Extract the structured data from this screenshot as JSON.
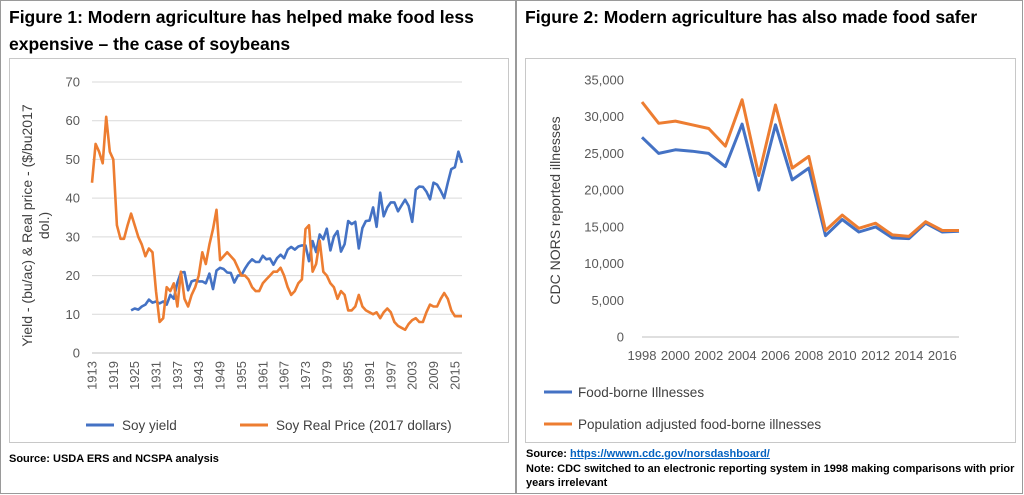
{
  "figure1": {
    "title": "Figure 1: Modern agriculture has helped make food less expensive – the case of soybeans",
    "source": "Source: USDA ERS and NCSPA analysis"
  },
  "figure2": {
    "title": "Figure 2: Modern agriculture has also made food safer",
    "source_label": "Source: ",
    "source_link": "https://wwwn.cdc.gov/norsdashboard/",
    "note": "Note: CDC switched to an electronic reporting system in 1998 making comparisons with prior years irrelevant"
  },
  "chart_data": [
    {
      "type": "line",
      "xlabel": "",
      "ylabel": "Yield - (bu/ac) & Real price - ($/bu2017 dol.)",
      "x_tick_labels": [
        "1913",
        "1919",
        "1925",
        "1931",
        "1937",
        "1943",
        "1949",
        "1955",
        "1961",
        "1967",
        "1973",
        "1979",
        "1985",
        "1991",
        "1997",
        "2003",
        "2009",
        "2015"
      ],
      "xlim": [
        1913,
        2017
      ],
      "ylim": [
        0,
        70
      ],
      "y_ticks": [
        0,
        10,
        20,
        30,
        40,
        50,
        60,
        70
      ],
      "legend_position": "bottom",
      "grid": "horizontal",
      "series": [
        {
          "name": "Soy yield",
          "color": "#4472c4",
          "points": [
            [
              1924,
              11
            ],
            [
              1925,
              11.5
            ],
            [
              1926,
              11.2
            ],
            [
              1927,
              12
            ],
            [
              1928,
              12.5
            ],
            [
              1929,
              13.8
            ],
            [
              1930,
              13
            ],
            [
              1931,
              13.3
            ],
            [
              1932,
              12.8
            ],
            [
              1933,
              13.3
            ],
            [
              1934,
              12.5
            ],
            [
              1935,
              15
            ],
            [
              1936,
              14
            ],
            [
              1937,
              18.2
            ],
            [
              1938,
              20.8
            ],
            [
              1939,
              20.9
            ],
            [
              1940,
              16.2
            ],
            [
              1941,
              18.5
            ],
            [
              1942,
              18.8
            ],
            [
              1943,
              18.5
            ],
            [
              1944,
              18.5
            ],
            [
              1945,
              18
            ],
            [
              1946,
              20.5
            ],
            [
              1947,
              16.5
            ],
            [
              1948,
              21.3
            ],
            [
              1949,
              22
            ],
            [
              1950,
              21.7
            ],
            [
              1951,
              20.8
            ],
            [
              1952,
              20.7
            ],
            [
              1953,
              18.2
            ],
            [
              1954,
              20
            ],
            [
              1955,
              20.1
            ],
            [
              1956,
              21.8
            ],
            [
              1957,
              23.2
            ],
            [
              1958,
              24.2
            ],
            [
              1959,
              23.5
            ],
            [
              1960,
              23.5
            ],
            [
              1961,
              25.1
            ],
            [
              1962,
              24.2
            ],
            [
              1963,
              24.4
            ],
            [
              1964,
              22.8
            ],
            [
              1965,
              24.5
            ],
            [
              1966,
              25.4
            ],
            [
              1967,
              24.5
            ],
            [
              1968,
              26.7
            ],
            [
              1969,
              27.4
            ],
            [
              1970,
              26.7
            ],
            [
              1971,
              27.5
            ],
            [
              1972,
              27.8
            ],
            [
              1973,
              27.8
            ],
            [
              1974,
              23.7
            ],
            [
              1975,
              28.9
            ],
            [
              1976,
              26.1
            ],
            [
              1977,
              30.6
            ],
            [
              1978,
              29.4
            ],
            [
              1979,
              32.1
            ],
            [
              1980,
              26.5
            ],
            [
              1981,
              30.1
            ],
            [
              1982,
              31.5
            ],
            [
              1983,
              26.2
            ],
            [
              1984,
              28.1
            ],
            [
              1985,
              34.1
            ],
            [
              1986,
              33.3
            ],
            [
              1987,
              33.9
            ],
            [
              1988,
              27
            ],
            [
              1989,
              32.3
            ],
            [
              1990,
              34.1
            ],
            [
              1991,
              34.2
            ],
            [
              1992,
              37.6
            ],
            [
              1993,
              32.6
            ],
            [
              1994,
              41.4
            ],
            [
              1995,
              35.3
            ],
            [
              1996,
              37.6
            ],
            [
              1997,
              38.9
            ],
            [
              1998,
              38.9
            ],
            [
              1999,
              36.6
            ],
            [
              2000,
              38.1
            ],
            [
              2001,
              39.6
            ],
            [
              2002,
              38
            ],
            [
              2003,
              33.9
            ],
            [
              2004,
              42.2
            ],
            [
              2005,
              43
            ],
            [
              2006,
              42.9
            ],
            [
              2007,
              41.7
            ],
            [
              2008,
              39.7
            ],
            [
              2009,
              44
            ],
            [
              2010,
              43.5
            ],
            [
              2011,
              41.9
            ],
            [
              2012,
              40
            ],
            [
              2013,
              44
            ],
            [
              2014,
              47.5
            ],
            [
              2015,
              48
            ],
            [
              2016,
              52
            ],
            [
              2017,
              49.1
            ]
          ]
        },
        {
          "name": "Soy Real Price (2017 dollars)",
          "color": "#ed7d31",
          "points": [
            [
              1913,
              44
            ],
            [
              1914,
              54
            ],
            [
              1915,
              52
            ],
            [
              1916,
              49
            ],
            [
              1917,
              61
            ],
            [
              1918,
              52
            ],
            [
              1919,
              50
            ],
            [
              1920,
              33
            ],
            [
              1921,
              29.5
            ],
            [
              1922,
              29.5
            ],
            [
              1923,
              33
            ],
            [
              1924,
              36
            ],
            [
              1925,
              33
            ],
            [
              1926,
              30
            ],
            [
              1927,
              28
            ],
            [
              1928,
              25
            ],
            [
              1929,
              27
            ],
            [
              1930,
              26
            ],
            [
              1931,
              16
            ],
            [
              1932,
              8
            ],
            [
              1933,
              9
            ],
            [
              1934,
              17
            ],
            [
              1935,
              16
            ],
            [
              1936,
              18
            ],
            [
              1937,
              12
            ],
            [
              1938,
              21
            ],
            [
              1939,
              14
            ],
            [
              1940,
              12
            ],
            [
              1941,
              15
            ],
            [
              1942,
              17
            ],
            [
              1943,
              20
            ],
            [
              1944,
              26
            ],
            [
              1945,
              23
            ],
            [
              1946,
              28
            ],
            [
              1947,
              32
            ],
            [
              1948,
              37
            ],
            [
              1949,
              24
            ],
            [
              1950,
              25
            ],
            [
              1951,
              26
            ],
            [
              1952,
              25
            ],
            [
              1953,
              24
            ],
            [
              1954,
              22
            ],
            [
              1955,
              20
            ],
            [
              1956,
              20
            ],
            [
              1957,
              19
            ],
            [
              1958,
              17
            ],
            [
              1959,
              16
            ],
            [
              1960,
              16
            ],
            [
              1961,
              18
            ],
            [
              1962,
              19
            ],
            [
              1963,
              20
            ],
            [
              1964,
              21
            ],
            [
              1965,
              21
            ],
            [
              1966,
              22
            ],
            [
              1967,
              20
            ],
            [
              1968,
              17
            ],
            [
              1969,
              15
            ],
            [
              1970,
              16
            ],
            [
              1971,
              18
            ],
            [
              1972,
              19
            ],
            [
              1973,
              32
            ],
            [
              1974,
              33
            ],
            [
              1975,
              21
            ],
            [
              1976,
              23
            ],
            [
              1977,
              29
            ],
            [
              1978,
              21
            ],
            [
              1979,
              20
            ],
            [
              1980,
              18
            ],
            [
              1981,
              17
            ],
            [
              1982,
              14
            ],
            [
              1983,
              16
            ],
            [
              1984,
              15
            ],
            [
              1985,
              11
            ],
            [
              1986,
              11
            ],
            [
              1987,
              12
            ],
            [
              1988,
              15
            ],
            [
              1989,
              12
            ],
            [
              1990,
              11
            ],
            [
              1991,
              10.5
            ],
            [
              1992,
              10
            ],
            [
              1993,
              10.5
            ],
            [
              1994,
              9
            ],
            [
              1995,
              10.5
            ],
            [
              1996,
              11.5
            ],
            [
              1997,
              10.5
            ],
            [
              1998,
              8
            ],
            [
              1999,
              7
            ],
            [
              2000,
              6.5
            ],
            [
              2001,
              6
            ],
            [
              2002,
              7.5
            ],
            [
              2003,
              8.5
            ],
            [
              2004,
              9
            ],
            [
              2005,
              8
            ],
            [
              2006,
              8
            ],
            [
              2007,
              10.5
            ],
            [
              2008,
              12.5
            ],
            [
              2009,
              12
            ],
            [
              2010,
              12
            ],
            [
              2011,
              14
            ],
            [
              2012,
              15.5
            ],
            [
              2013,
              14
            ],
            [
              2014,
              11
            ],
            [
              2015,
              9.5
            ],
            [
              2016,
              9.5
            ],
            [
              2017,
              9.5
            ]
          ]
        }
      ]
    },
    {
      "type": "line",
      "xlabel": "",
      "ylabel": "CDC NORS reported illnesses",
      "x_tick_labels": [
        "1998",
        "2000",
        "2002",
        "2004",
        "2006",
        "2008",
        "2010",
        "2012",
        "2014",
        "2016"
      ],
      "xlim": [
        1998,
        2017
      ],
      "ylim": [
        0,
        35000
      ],
      "y_tick_labels": [
        "0",
        "5,000",
        "10,000",
        "15,000",
        "20,000",
        "25,000",
        "30,000",
        "35,000"
      ],
      "legend_position": "bottom",
      "grid": "none",
      "series": [
        {
          "name": "Food-borne Illnesses",
          "color": "#4472c4",
          "points": [
            [
              1998,
              27200
            ],
            [
              1999,
              25000
            ],
            [
              2000,
              25500
            ],
            [
              2001,
              25300
            ],
            [
              2002,
              25000
            ],
            [
              2003,
              23200
            ],
            [
              2004,
              29000
            ],
            [
              2005,
              20000
            ],
            [
              2006,
              28900
            ],
            [
              2007,
              21400
            ],
            [
              2008,
              23000
            ],
            [
              2009,
              13800
            ],
            [
              2010,
              16000
            ],
            [
              2011,
              14300
            ],
            [
              2012,
              15000
            ],
            [
              2013,
              13500
            ],
            [
              2014,
              13400
            ],
            [
              2015,
              15500
            ],
            [
              2016,
              14300
            ],
            [
              2017,
              14400
            ]
          ]
        },
        {
          "name": "Population adjusted food-borne illnesses",
          "color": "#ed7d31",
          "points": [
            [
              1998,
              32000
            ],
            [
              1999,
              29100
            ],
            [
              2000,
              29400
            ],
            [
              2001,
              28900
            ],
            [
              2002,
              28400
            ],
            [
              2003,
              26000
            ],
            [
              2004,
              32300
            ],
            [
              2005,
              22000
            ],
            [
              2006,
              31600
            ],
            [
              2007,
              23000
            ],
            [
              2008,
              24600
            ],
            [
              2009,
              14500
            ],
            [
              2010,
              16600
            ],
            [
              2011,
              14800
            ],
            [
              2012,
              15500
            ],
            [
              2013,
              13900
            ],
            [
              2014,
              13700
            ],
            [
              2015,
              15700
            ],
            [
              2016,
              14500
            ],
            [
              2017,
              14500
            ]
          ]
        }
      ]
    }
  ]
}
